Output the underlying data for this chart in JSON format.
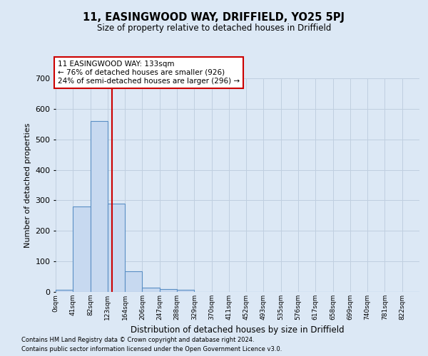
{
  "title": "11, EASINGWOOD WAY, DRIFFIELD, YO25 5PJ",
  "subtitle": "Size of property relative to detached houses in Driffield",
  "xlabel": "Distribution of detached houses by size in Driffield",
  "ylabel": "Number of detached properties",
  "bin_labels": [
    "0sqm",
    "41sqm",
    "82sqm",
    "123sqm",
    "164sqm",
    "206sqm",
    "247sqm",
    "288sqm",
    "329sqm",
    "370sqm",
    "411sqm",
    "452sqm",
    "493sqm",
    "535sqm",
    "576sqm",
    "617sqm",
    "658sqm",
    "699sqm",
    "740sqm",
    "781sqm",
    "822sqm"
  ],
  "bar_heights": [
    8,
    280,
    560,
    290,
    68,
    15,
    10,
    8,
    0,
    0,
    0,
    0,
    0,
    0,
    0,
    0,
    0,
    0,
    0,
    0,
    0
  ],
  "bar_color": "#c7d9f0",
  "bar_edge_color": "#5a8fc4",
  "property_line_x": 133,
  "property_line_color": "#cc0000",
  "annotation_line1": "11 EASINGWOOD WAY: 133sqm",
  "annotation_line2": "← 76% of detached houses are smaller (926)",
  "annotation_line3": "24% of semi-detached houses are larger (296) →",
  "annotation_box_color": "#ffffff",
  "annotation_box_edge_color": "#cc0000",
  "ylim": [
    0,
    700
  ],
  "yticks": [
    0,
    100,
    200,
    300,
    400,
    500,
    600,
    700
  ],
  "grid_color": "#c0cfe0",
  "bg_color": "#dce8f5",
  "footnote1": "Contains HM Land Registry data © Crown copyright and database right 2024.",
  "footnote2": "Contains public sector information licensed under the Open Government Licence v3.0.",
  "bin_width": 41
}
